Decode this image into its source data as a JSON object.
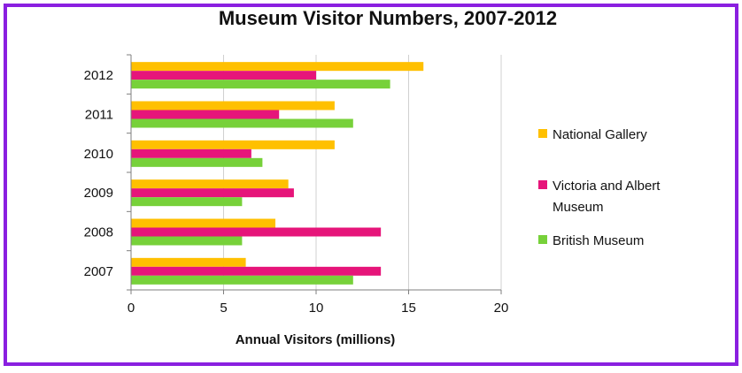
{
  "chart_data": {
    "type": "bar",
    "orientation": "horizontal",
    "title": "Museum Visitor Numbers, 2007-2012",
    "xlabel": "Annual Visitors (millions)",
    "ylabel": "",
    "xlim": [
      0,
      20
    ],
    "xticks": [
      0,
      5,
      10,
      15,
      20
    ],
    "grid": true,
    "legend_position": "right",
    "categories": [
      "2012",
      "2011",
      "2010",
      "2009",
      "2008",
      "2007"
    ],
    "series": [
      {
        "name": "National Gallery",
        "color": "#ffc000",
        "values": [
          15.8,
          11.0,
          11.0,
          8.5,
          7.8,
          6.2
        ]
      },
      {
        "name": "Victoria and Albert Museum",
        "legend_lines": [
          "Victoria and Albert",
          "Museum"
        ],
        "color": "#e6157a",
        "values": [
          10.0,
          8.0,
          6.5,
          8.8,
          13.5,
          13.5
        ]
      },
      {
        "name": "British Museum",
        "color": "#77d13a",
        "values": [
          14.0,
          12.0,
          7.1,
          6.0,
          6.0,
          12.0
        ]
      }
    ]
  }
}
